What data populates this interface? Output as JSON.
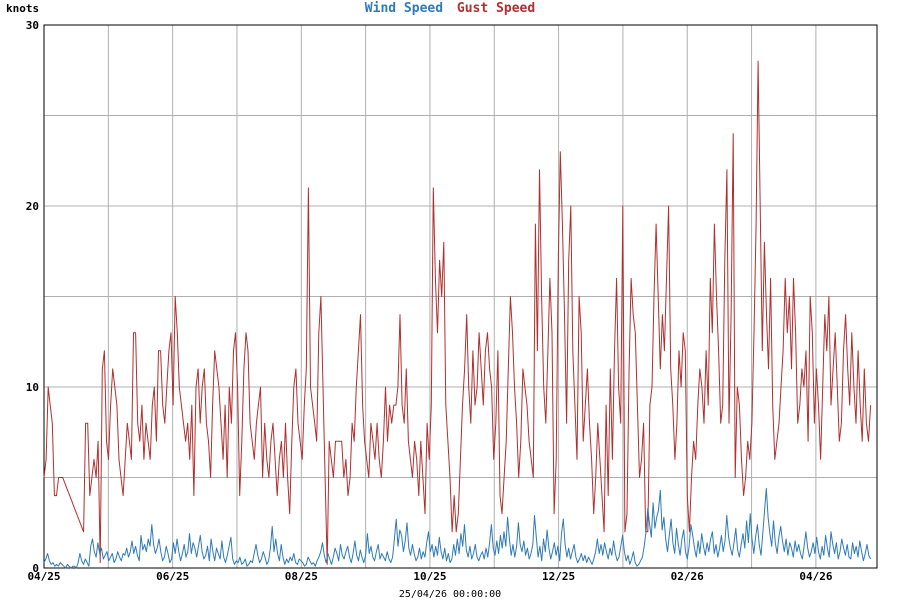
{
  "chart_data": {
    "type": "line",
    "title": "",
    "legend": {
      "placement": "top-center",
      "items": [
        {
          "label": "Wind Speed",
          "color": "#2e7bb8"
        },
        {
          "label": "Gust Speed",
          "color": "#b03030"
        }
      ]
    },
    "ylabel": "knots",
    "xlabel": "25/04/26 00:00:00",
    "ylim": [
      0,
      30
    ],
    "yticks": [
      0,
      10,
      20,
      30
    ],
    "y_minor_ticks": [
      5,
      15,
      25
    ],
    "x_tick_labels": [
      "04/25",
      "06/25",
      "08/25",
      "10/25",
      "12/25",
      "02/26",
      "04/26"
    ],
    "x_tick_positions_months": [
      0,
      2,
      4,
      6,
      8,
      10,
      12
    ],
    "x_minor_positions_months": [
      1,
      3,
      5,
      7,
      9,
      11
    ],
    "xlim_months": [
      0,
      12.95
    ],
    "grid": true,
    "series": [
      {
        "name": "Wind Speed",
        "color": "#2e7bb8",
        "x_start_months": 0.0,
        "x_end_months": 12.85,
        "values": [
          0.3,
          0.5,
          0.8,
          0.4,
          0.2,
          0.3,
          0.1,
          0.2,
          0.1,
          0.3,
          0.2,
          0.1,
          0.0,
          0.2,
          0.1,
          0.0,
          0.1,
          0.1,
          0.0,
          0.3,
          0.8,
          0.4,
          0.2,
          0.5,
          0.3,
          0.1,
          1.2,
          1.6,
          0.9,
          0.6,
          1.4,
          0.8,
          1.1,
          0.5,
          0.7,
          0.9,
          0.4,
          0.6,
          0.8,
          0.3,
          0.5,
          0.9,
          0.6,
          0.4,
          0.8,
          0.7,
          1.1,
          0.6,
          0.9,
          1.5,
          0.8,
          1.2,
          0.7,
          0.4,
          1.8,
          1.0,
          1.3,
          0.9,
          1.6,
          1.2,
          2.4,
          1.3,
          0.8,
          1.1,
          1.6,
          0.9,
          0.4,
          0.6,
          1.2,
          0.8,
          0.3,
          0.5,
          1.4,
          0.8,
          1.6,
          0.9,
          0.4,
          0.8,
          1.3,
          0.6,
          0.9,
          1.9,
          0.8,
          1.4,
          1.1,
          0.6,
          1.2,
          1.8,
          0.9,
          0.5,
          0.7,
          1.2,
          0.4,
          1.6,
          0.9,
          0.4,
          1.1,
          0.8,
          0.5,
          1.5,
          0.6,
          0.3,
          0.7,
          1.2,
          1.7,
          0.5,
          0.2,
          0.4,
          0.3,
          0.6,
          0.2,
          0.3,
          0.5,
          0.1,
          0.2,
          0.4,
          0.3,
          0.8,
          1.3,
          0.7,
          0.3,
          0.5,
          0.9,
          0.6,
          0.2,
          0.4,
          1.1,
          2.3,
          0.9,
          1.6,
          0.8,
          0.4,
          1.3,
          0.6,
          0.2,
          0.5,
          0.3,
          0.6,
          0.4,
          0.8,
          0.3,
          0.2,
          0.5,
          0.4,
          0.3,
          0.1,
          0.2,
          0.6,
          0.4,
          0.2,
          0.3,
          0.1,
          0.4,
          0.6,
          0.9,
          1.4,
          0.7,
          0.3,
          0.8,
          0.5,
          0.2,
          0.6,
          1.1,
          0.8,
          0.4,
          1.3,
          0.7,
          0.5,
          0.9,
          1.2,
          0.6,
          0.3,
          0.8,
          1.5,
          0.7,
          0.4,
          1.0,
          0.6,
          0.3,
          0.7,
          1.9,
          0.8,
          1.2,
          0.6,
          0.4,
          0.9,
          1.3,
          0.5,
          0.8,
          0.6,
          0.4,
          0.9,
          0.5,
          0.3,
          0.6,
          1.6,
          2.7,
          1.2,
          2.1,
          1.8,
          0.9,
          1.5,
          2.5,
          1.1,
          0.7,
          1.3,
          0.8,
          0.4,
          0.6,
          1.1,
          0.5,
          0.9,
          0.6,
          1.4,
          2.0,
          0.9,
          1.3,
          0.6,
          1.2,
          0.7,
          1.7,
          0.9,
          0.5,
          1.1,
          0.4,
          0.8,
          0.3,
          0.5,
          1.3,
          0.7,
          1.6,
          0.8,
          1.9,
          1.2,
          2.4,
          1.0,
          0.6,
          1.2,
          0.5,
          0.8,
          1.3,
          0.6,
          0.4,
          0.7,
          0.9,
          0.5,
          1.1,
          0.6,
          1.4,
          2.4,
          1.1,
          0.7,
          1.5,
          0.8,
          1.8,
          1.1,
          2.0,
          1.2,
          2.8,
          1.6,
          0.7,
          1.3,
          0.6,
          1.2,
          2.5,
          1.3,
          0.9,
          1.5,
          0.7,
          1.1,
          0.5,
          0.8,
          1.3,
          2.9,
          1.7,
          0.6,
          1.2,
          0.4,
          1.6,
          0.9,
          2.1,
          1.1,
          0.5,
          0.9,
          1.4,
          0.7,
          1.2,
          0.4,
          1.9,
          2.7,
          1.3,
          0.6,
          1.1,
          0.5,
          0.9,
          1.3,
          0.6,
          0.3,
          0.5,
          0.8,
          0.4,
          0.7,
          0.3,
          0.6,
          0.4,
          0.2,
          0.5,
          0.9,
          1.6,
          0.8,
          1.3,
          0.7,
          1.4,
          0.9,
          0.5,
          1.1,
          0.7,
          1.5,
          0.8,
          0.4,
          0.6,
          1.2,
          1.8,
          0.9,
          0.4,
          0.7,
          0.2,
          0.5,
          0.9,
          0.3,
          0.1,
          0.2,
          0.4,
          0.6,
          1.2,
          2.0,
          3.3,
          2.4,
          1.7,
          3.6,
          2.2,
          2.8,
          3.2,
          4.3,
          2.1,
          2.8,
          1.6,
          0.9,
          1.8,
          2.7,
          1.4,
          0.8,
          2.2,
          1.3,
          0.7,
          1.6,
          2.1,
          0.9,
          0.5,
          1.2,
          2.4,
          1.8,
          1.1,
          0.6,
          1.5,
          0.8,
          1.9,
          1.2,
          0.7,
          1.4,
          0.9,
          1.6,
          2.0,
          0.8,
          1.3,
          0.6,
          1.1,
          1.8,
          0.9,
          1.5,
          2.9,
          1.7,
          1.1,
          0.7,
          1.4,
          2.2,
          1.0,
          0.6,
          1.3,
          1.9,
          1.1,
          2.6,
          1.4,
          3.0,
          1.6,
          0.8,
          1.7,
          2.4,
          1.3,
          0.7,
          1.9,
          3.2,
          4.4,
          2.8,
          1.9,
          1.2,
          2.6,
          1.4,
          0.8,
          1.7,
          2.3,
          1.5,
          0.9,
          1.6,
          0.7,
          1.4,
          1.1,
          0.6,
          1.5,
          0.9,
          1.3,
          0.8,
          0.5,
          1.2,
          2.0,
          1.1,
          0.6,
          0.9,
          1.4,
          0.8,
          1.7,
          0.9,
          0.5,
          1.2,
          0.7,
          1.8,
          1.1,
          0.6,
          2.0,
          1.3,
          0.8,
          1.4,
          0.5,
          0.9,
          1.6,
          1.1,
          0.7,
          1.3,
          0.6,
          0.5,
          1.4,
          0.8,
          1.2,
          0.6,
          1.5,
          0.9,
          0.4,
          0.8,
          1.3,
          0.7,
          0.5
        ]
      },
      {
        "name": "Gust Speed",
        "color": "#b03030",
        "x_start_months": 0.0,
        "x_end_months": 12.85,
        "values": [
          5,
          6,
          10,
          9,
          8,
          4,
          4,
          5,
          5,
          5,
          4.7,
          4.4,
          4.1,
          3.8,
          3.5,
          3.2,
          2.9,
          2.6,
          2.3,
          2,
          8,
          8,
          4,
          5,
          6,
          5,
          7,
          0.3,
          11,
          12,
          7,
          6,
          9,
          11,
          10,
          9,
          6,
          5,
          4,
          6,
          8,
          7,
          6,
          13,
          13,
          8,
          7,
          9,
          6,
          8,
          7,
          6,
          9,
          10,
          7,
          12,
          12,
          9,
          8,
          10,
          12,
          13,
          9,
          15,
          13,
          10,
          9,
          8,
          7,
          8,
          6,
          9,
          4,
          10,
          11,
          8,
          10,
          11,
          8,
          7,
          5,
          9,
          12,
          11,
          10,
          8,
          6,
          9,
          5,
          10,
          8,
          12,
          13,
          10,
          4,
          7,
          11,
          13,
          12,
          8,
          7,
          6,
          8,
          9,
          10,
          5,
          8,
          6,
          5,
          7,
          8,
          6,
          4,
          6,
          7,
          5,
          8,
          5,
          3,
          7,
          10,
          11,
          8,
          7,
          6,
          9,
          11,
          21,
          10,
          9,
          8,
          7,
          13,
          15,
          10,
          5,
          0.2,
          7,
          6,
          5,
          7,
          7,
          7,
          7,
          5,
          6,
          4,
          5,
          8,
          7,
          10,
          12,
          14,
          9,
          7,
          6,
          5,
          8,
          7,
          6,
          8,
          6,
          5,
          7,
          10,
          7,
          9,
          8,
          9,
          9,
          10,
          14,
          9,
          8,
          11,
          7,
          6,
          5,
          7,
          6,
          4,
          7,
          5,
          3,
          8,
          6,
          9,
          21,
          16,
          13,
          17,
          15,
          18,
          9,
          7,
          5,
          2,
          4,
          2,
          3,
          6,
          9,
          11,
          14,
          10,
          8,
          12,
          9,
          10,
          13,
          11,
          9,
          12,
          13,
          11,
          10,
          6,
          8,
          12,
          4,
          3,
          5,
          7,
          11,
          15,
          13,
          10,
          8,
          5,
          7,
          11,
          10,
          9,
          7,
          6,
          5,
          19,
          12,
          22,
          15,
          10,
          8,
          12,
          16,
          13,
          3,
          6,
          17,
          23,
          19,
          14,
          8,
          17,
          20,
          12,
          9,
          6,
          15,
          13,
          7,
          9,
          11,
          8,
          6,
          3,
          5,
          8,
          6,
          4,
          2,
          9,
          4,
          11,
          6,
          12,
          16,
          10,
          8,
          20,
          2,
          3,
          11,
          16,
          14,
          13,
          9,
          5,
          6,
          8,
          2,
          2,
          9,
          10,
          15,
          19,
          15,
          11,
          14,
          12,
          16,
          20,
          11,
          9,
          6,
          8,
          12,
          10,
          13,
          12,
          4,
          2,
          5,
          7,
          6,
          9,
          11,
          10,
          8,
          12,
          9,
          16,
          13,
          19,
          15,
          12,
          8,
          9,
          17,
          22,
          8,
          14,
          24,
          5,
          10,
          9,
          6,
          4,
          5,
          7,
          6,
          8,
          13,
          19,
          28,
          20,
          12,
          18,
          14,
          11,
          16,
          9,
          6,
          7,
          8,
          10,
          12,
          16,
          13,
          15,
          11,
          16,
          13,
          8,
          9,
          11,
          10,
          12,
          7,
          15,
          13,
          8,
          11,
          9,
          6,
          10,
          14,
          12,
          15,
          9,
          11,
          13,
          10,
          7,
          8,
          12,
          14,
          11,
          9,
          13,
          10,
          8,
          12,
          9,
          7,
          11,
          8,
          7,
          9
        ]
      }
    ]
  }
}
